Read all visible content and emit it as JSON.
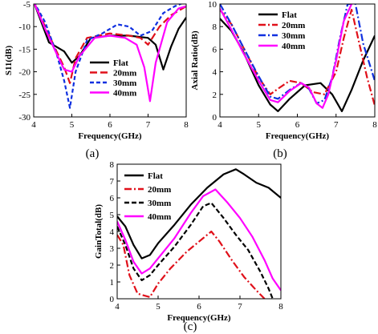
{
  "chart_data": [
    {
      "type": "line",
      "caption": "(a)",
      "xlabel": "Frequency(GHz)",
      "ylabel": "S11(dB)",
      "xlim": [
        4,
        8
      ],
      "ylim": [
        -30,
        -5
      ],
      "xticks": [
        4,
        5,
        6,
        7,
        8
      ],
      "yticks": [
        -5,
        -10,
        -15,
        -20,
        -25,
        -30
      ],
      "legend_position": "right",
      "series": [
        {
          "name": "Flat",
          "color": "#000000",
          "dash": "solid",
          "x": [
            4.0,
            4.2,
            4.4,
            4.6,
            4.8,
            5.0,
            5.2,
            5.5,
            6.0,
            6.5,
            7.0,
            7.2,
            7.4,
            7.6,
            7.8,
            8.0
          ],
          "y": [
            -4.5,
            -9.0,
            -13.5,
            -14.5,
            -15.5,
            -18.0,
            -16.5,
            -12.5,
            -12.0,
            -12.0,
            -12.5,
            -14.0,
            -19.5,
            -14.5,
            -10.5,
            -8.0
          ]
        },
        {
          "name": "20mm",
          "color": "#e0101a",
          "dash": "longdash",
          "x": [
            4.0,
            4.3,
            4.6,
            4.8,
            4.95,
            5.1,
            5.4,
            6.0,
            6.5,
            6.8,
            7.0,
            7.3,
            7.6,
            8.0
          ],
          "y": [
            -4.5,
            -10.0,
            -15.5,
            -19.0,
            -22.5,
            -17.0,
            -12.5,
            -11.5,
            -12.0,
            -12.5,
            -14.0,
            -10.0,
            -7.5,
            -5.5
          ]
        },
        {
          "name": "30mm",
          "color": "#1030e0",
          "dash": "shortdash",
          "x": [
            4.0,
            4.3,
            4.6,
            4.8,
            4.95,
            5.1,
            5.4,
            5.8,
            6.2,
            6.5,
            6.8,
            7.1,
            7.4,
            7.7,
            8.0
          ],
          "y": [
            -4.5,
            -9.0,
            -16.0,
            -22.0,
            -28.0,
            -20.0,
            -13.0,
            -11.5,
            -9.5,
            -10.0,
            -12.0,
            -11.0,
            -7.0,
            -5.5,
            -4.5
          ]
        },
        {
          "name": "40mm",
          "color": "#ff00ff",
          "dash": "solid",
          "x": [
            4.0,
            4.3,
            4.6,
            4.8,
            5.0,
            5.2,
            5.6,
            6.0,
            6.4,
            6.7,
            6.9,
            7.05,
            7.2,
            7.5,
            7.8,
            8.0
          ],
          "y": [
            -4.5,
            -10.5,
            -16.0,
            -19.5,
            -20.0,
            -16.5,
            -12.5,
            -12.0,
            -12.5,
            -14.0,
            -19.0,
            -26.5,
            -18.0,
            -9.0,
            -6.0,
            -5.5
          ]
        }
      ]
    },
    {
      "type": "line",
      "caption": "(b)",
      "xlabel": "Frequency(GHz)",
      "ylabel": "Axial Ratio(dB)",
      "xlim": [
        4,
        8
      ],
      "ylim": [
        0,
        10
      ],
      "xticks": [
        4,
        5,
        6,
        7,
        8
      ],
      "yticks": [
        0,
        2,
        4,
        6,
        8,
        10
      ],
      "legend_position": "top-center",
      "series": [
        {
          "name": "Flat",
          "color": "#000000",
          "dash": "solid",
          "x": [
            4.0,
            4.3,
            4.6,
            5.0,
            5.3,
            5.5,
            5.8,
            6.2,
            6.6,
            6.9,
            7.15,
            7.4,
            7.7,
            8.0
          ],
          "y": [
            8.7,
            7.6,
            5.8,
            2.8,
            1.1,
            0.5,
            1.6,
            2.8,
            3.0,
            2.0,
            0.5,
            2.4,
            5.0,
            7.2
          ]
        },
        {
          "name": "20mm",
          "color": "#e0101a",
          "dash": "dashdot",
          "x": [
            4.0,
            4.3,
            4.6,
            5.0,
            5.3,
            5.5,
            5.8,
            6.1,
            6.4,
            6.7,
            7.0,
            7.2,
            7.4,
            7.6,
            7.8,
            8.0
          ],
          "y": [
            9.5,
            8.2,
            6.2,
            3.5,
            2.0,
            2.5,
            3.2,
            3.0,
            2.2,
            2.0,
            4.0,
            7.0,
            9.5,
            6.5,
            3.5,
            1.0
          ]
        },
        {
          "name": "30mm",
          "color": "#1030e0",
          "dash": "dashdot",
          "x": [
            4.0,
            4.3,
            4.6,
            5.0,
            5.3,
            5.5,
            5.8,
            6.1,
            6.3,
            6.5,
            6.7,
            6.9,
            7.1,
            7.3,
            7.5,
            7.7,
            8.0
          ],
          "y": [
            10.0,
            8.2,
            6.2,
            3.6,
            1.8,
            1.6,
            2.4,
            3.0,
            2.5,
            1.2,
            1.5,
            3.5,
            7.0,
            10.0,
            10.0,
            6.5,
            3.2
          ]
        },
        {
          "name": "40mm",
          "color": "#ff00ff",
          "dash": "solid",
          "x": [
            4.0,
            4.3,
            4.6,
            5.0,
            5.3,
            5.5,
            5.8,
            6.1,
            6.3,
            6.5,
            6.65,
            6.8,
            7.0,
            7.2,
            7.4
          ],
          "y": [
            9.6,
            7.7,
            5.7,
            3.2,
            1.5,
            1.3,
            2.3,
            3.0,
            2.6,
            1.2,
            0.8,
            2.0,
            5.0,
            8.5,
            10.0
          ]
        }
      ]
    },
    {
      "type": "line",
      "caption": "(c)",
      "xlabel": "Frequency(GHz)",
      "ylabel": "GainTotal(dB)",
      "xlim": [
        4,
        8
      ],
      "ylim": [
        0,
        8
      ],
      "xticks": [
        4,
        5,
        6,
        7,
        8
      ],
      "yticks": [
        0,
        1,
        2,
        3,
        4,
        5,
        6,
        7,
        8
      ],
      "legend_position": "top-left",
      "series": [
        {
          "name": "Flat",
          "color": "#000000",
          "dash": "solid",
          "x": [
            4.0,
            4.2,
            4.4,
            4.6,
            4.8,
            5.0,
            5.4,
            5.8,
            6.2,
            6.6,
            6.9,
            7.1,
            7.4,
            7.7,
            8.0
          ],
          "y": [
            4.9,
            4.3,
            3.2,
            2.4,
            2.6,
            3.3,
            4.4,
            5.6,
            6.6,
            7.4,
            7.7,
            7.4,
            6.9,
            6.6,
            6.0
          ]
        },
        {
          "name": "20mm",
          "color": "#e0101a",
          "dash": "dashdot",
          "x": [
            4.0,
            4.15,
            4.3,
            4.5,
            4.8,
            5.0,
            5.3,
            5.7,
            6.1,
            6.3,
            6.5,
            6.8,
            7.1,
            7.4,
            7.6
          ],
          "y": [
            3.8,
            3.2,
            1.4,
            0.3,
            0.1,
            0.9,
            1.8,
            2.8,
            3.6,
            4.0,
            3.4,
            2.3,
            1.3,
            0.5,
            0.0
          ]
        },
        {
          "name": "30mm",
          "color": "#000000",
          "dash": "dash",
          "x": [
            4.0,
            4.2,
            4.4,
            4.6,
            4.8,
            5.0,
            5.4,
            5.8,
            6.1,
            6.3,
            6.6,
            6.9,
            7.2,
            7.5,
            7.7,
            7.8
          ],
          "y": [
            4.3,
            3.2,
            1.8,
            1.1,
            1.4,
            2.0,
            3.1,
            4.4,
            5.5,
            5.7,
            4.8,
            3.8,
            2.9,
            1.6,
            0.6,
            0.0
          ]
        },
        {
          "name": "40mm",
          "color": "#ff00ff",
          "dash": "solid",
          "x": [
            4.0,
            4.2,
            4.4,
            4.6,
            4.8,
            5.0,
            5.4,
            5.8,
            6.1,
            6.4,
            6.7,
            7.0,
            7.3,
            7.6,
            7.8,
            8.0
          ],
          "y": [
            4.6,
            3.5,
            2.2,
            1.5,
            1.8,
            2.4,
            3.6,
            5.1,
            6.1,
            6.5,
            5.7,
            4.8,
            3.7,
            2.3,
            1.2,
            0.5
          ]
        }
      ]
    }
  ]
}
